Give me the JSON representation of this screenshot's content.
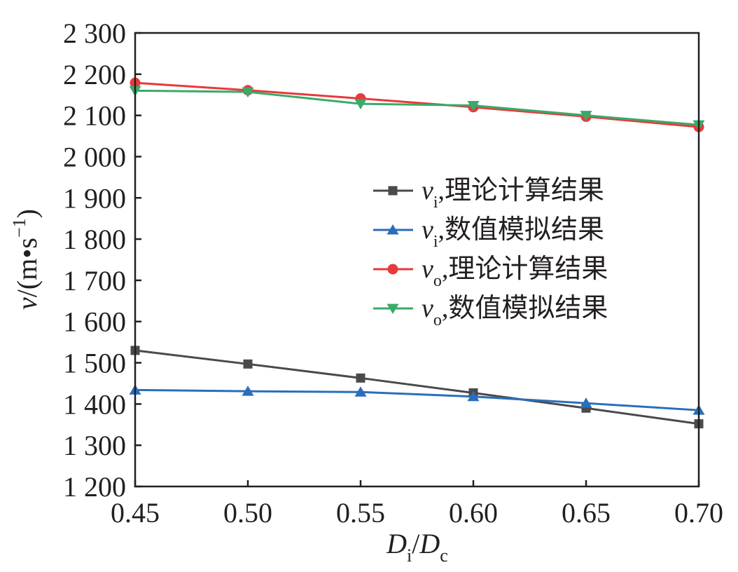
{
  "chart_data": {
    "type": "line",
    "x": [
      0.45,
      0.5,
      0.55,
      0.6,
      0.65,
      0.7
    ],
    "xlim": [
      0.45,
      0.7
    ],
    "ylim": [
      1200,
      2300
    ],
    "xticks": [
      "0.45",
      "0.50",
      "0.55",
      "0.60",
      "0.65",
      "0.70"
    ],
    "yticks": [
      "1 200",
      "1 300",
      "1 400",
      "1 500",
      "1 600",
      "1 700",
      "1 800",
      "1 900",
      "2 000",
      "2 100",
      "2 200",
      "2 300"
    ],
    "xlabel": {
      "D1": "D",
      "sub1": "i",
      "slash": "/",
      "D2": "D",
      "sub2": "c"
    },
    "ylabel": {
      "v": "v",
      "open": "/(m",
      "dot": "•",
      "s": "s",
      "exp": "−1",
      "close": ")"
    },
    "grid": false,
    "legend_position": "center-right",
    "series": [
      {
        "name": "v_i,理论计算结果",
        "label_var": "v",
        "label_sub": "i",
        "label_text": ",理论计算结果",
        "color": "#4a4a4a",
        "marker": "square",
        "values": [
          1530,
          1497,
          1463,
          1427,
          1390,
          1352
        ]
      },
      {
        "name": "v_i,数值模拟结果",
        "label_var": "v",
        "label_sub": "i",
        "label_text": ",数值模拟结果",
        "color": "#2a6ebb",
        "marker": "triangle-up",
        "values": [
          1434,
          1431,
          1429,
          1418,
          1402,
          1385
        ]
      },
      {
        "name": "v_o,理论计算结果",
        "label_var": "v",
        "label_sub": "o",
        "label_text": ",理论计算结果",
        "color": "#e83a3a",
        "marker": "circle",
        "values": [
          2179,
          2161,
          2141,
          2120,
          2097,
          2072
        ]
      },
      {
        "name": "v_o,数值模拟结果",
        "label_var": "v",
        "label_sub": "o",
        "label_text": ",数值模拟结果",
        "color": "#3aaa6a",
        "marker": "triangle-down",
        "values": [
          2160,
          2157,
          2128,
          2124,
          2100,
          2077
        ]
      }
    ]
  }
}
